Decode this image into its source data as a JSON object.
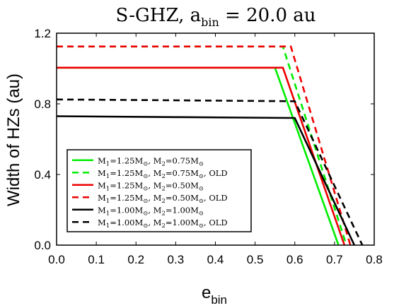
{
  "chart_data": {
    "type": "line",
    "title": {
      "main": "S-GHZ, a",
      "sub": "bin",
      "rest": " = 20.0 au"
    },
    "xlabel": {
      "main": "e",
      "sub": "bin"
    },
    "ylabel": "Width of HZs (au)",
    "xlim": [
      0.0,
      0.8
    ],
    "ylim": [
      0.0,
      1.2
    ],
    "xticks": [
      "0.0",
      "0.1",
      "0.2",
      "0.3",
      "0.4",
      "0.5",
      "0.6",
      "0.7",
      "0.8"
    ],
    "yticks": [
      "0.0",
      "0.4",
      "0.8",
      "1.2"
    ],
    "grid": false,
    "legend_position": "bottom-left",
    "series": [
      {
        "name": "M1=1.25M⊙, M2=0.75M⊙",
        "color": "#00ee00",
        "dash": "solid",
        "x": [
          0.0,
          0.55,
          0.71
        ],
        "y": [
          1.005,
          1.005,
          0.0
        ]
      },
      {
        "name": "M1=1.25M⊙, M2=0.75M⊙, OLD",
        "color": "#00ee00",
        "dash": "dashed",
        "x": [
          0.0,
          0.57,
          0.73
        ],
        "y": [
          1.125,
          1.125,
          0.0
        ]
      },
      {
        "name": "M1=1.25M⊙, M2=0.50M⊙",
        "color": "#ee0000",
        "dash": "solid",
        "x": [
          0.0,
          0.57,
          0.725
        ],
        "y": [
          1.005,
          1.005,
          0.0
        ]
      },
      {
        "name": "M1=1.25M⊙, M2=0.50M⊙, OLD",
        "color": "#ee0000",
        "dash": "dashed",
        "x": [
          0.0,
          0.59,
          0.74
        ],
        "y": [
          1.125,
          1.125,
          0.0
        ]
      },
      {
        "name": "M1=1.00M⊙, M2=1.00M⊙",
        "color": "#000000",
        "dash": "solid",
        "x": [
          0.0,
          0.3,
          0.6,
          0.75
        ],
        "y": [
          0.73,
          0.725,
          0.72,
          0.0
        ]
      },
      {
        "name": "M1=1.00M⊙, M2=1.00M⊙, OLD",
        "color": "#000000",
        "dash": "dashed",
        "x": [
          0.0,
          0.3,
          0.6,
          0.77
        ],
        "y": [
          0.825,
          0.82,
          0.815,
          0.0
        ]
      }
    ],
    "legend": [
      {
        "m1": "1.25",
        "m2": "0.75",
        "old": ""
      },
      {
        "m1": "1.25",
        "m2": "0.75",
        "old": ", OLD"
      },
      {
        "m1": "1.25",
        "m2": "0.50",
        "old": ""
      },
      {
        "m1": "1.25",
        "m2": "0.50",
        "old": ", OLD"
      },
      {
        "m1": "1.00",
        "m2": "1.00",
        "old": ""
      },
      {
        "m1": "1.00",
        "m2": "1.00",
        "old": ", OLD"
      }
    ]
  }
}
